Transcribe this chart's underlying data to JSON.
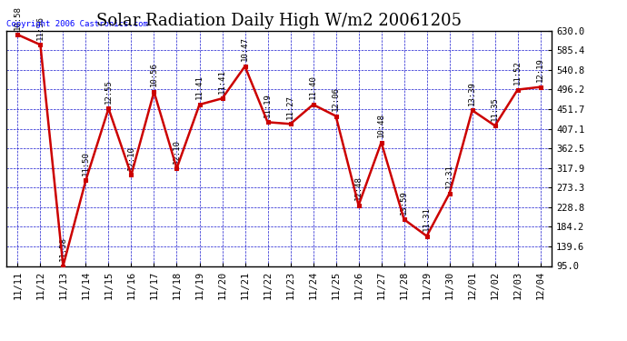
{
  "title": "Solar Radiation Daily High W/m2 20061205",
  "copyright": "Copyright 2006 Castronics.com",
  "dates": [
    "11/11",
    "11/12",
    "11/13",
    "11/14",
    "11/15",
    "11/16",
    "11/17",
    "11/18",
    "11/19",
    "11/20",
    "11/21",
    "11/22",
    "11/23",
    "11/24",
    "11/25",
    "11/26",
    "11/27",
    "11/28",
    "11/29",
    "11/30",
    "12/01",
    "12/02",
    "12/03",
    "12/04"
  ],
  "values": [
    621,
    598,
    95,
    290,
    453,
    302,
    491,
    317,
    462,
    476,
    549,
    422,
    418,
    462,
    436,
    233,
    376,
    201,
    163,
    260,
    449,
    414,
    496,
    502
  ],
  "time_labels": [
    "10:58",
    "11:36",
    "11:58",
    "11:50",
    "12:55",
    "12:10",
    "10:56",
    "12:10",
    "11:41",
    "11:41",
    "10:47",
    "11:19",
    "11:27",
    "11:40",
    "12:06",
    "12:48",
    "10:48",
    "13:59",
    "11:31",
    "12:31",
    "13:39",
    "11:35",
    "11:52",
    "12:19"
  ],
  "line_color": "#cc0000",
  "marker_color": "#cc0000",
  "marker_face_color": "#cc0000",
  "grid_color": "#0000cc",
  "background_color": "#ffffff",
  "yticks": [
    95.0,
    139.6,
    184.2,
    228.8,
    273.3,
    317.9,
    362.5,
    407.1,
    451.7,
    496.2,
    540.8,
    585.4,
    630.0
  ],
  "ylim": [
    95.0,
    630.0
  ],
  "title_fontsize": 13,
  "annotation_fontsize": 6.5,
  "copyright_fontsize": 6.5,
  "tick_fontsize": 7.5
}
